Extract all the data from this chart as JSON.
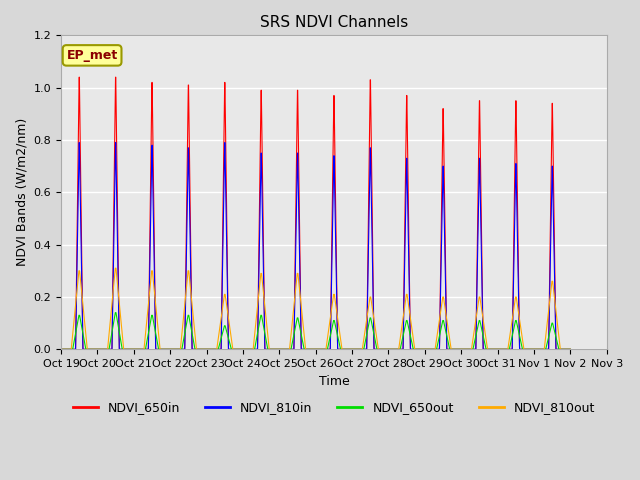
{
  "title": "SRS NDVI Channels",
  "xlabel": "Time",
  "ylabel": "NDVI Bands (W/m2/nm)",
  "annotation": "EP_met",
  "ylim": [
    0.0,
    1.2
  ],
  "tick_labels": [
    "Oct 19",
    "Oct 20",
    "Oct 21",
    "Oct 22",
    "Oct 23",
    "Oct 24",
    "Oct 25",
    "Oct 26",
    "Oct 27",
    "Oct 28",
    "Oct 29",
    "Oct 30",
    "Oct 31",
    "Nov 1",
    "Nov 2",
    "Nov 3"
  ],
  "series": {
    "NDVI_650in": {
      "color": "#ff0000",
      "label": "NDVI_650in"
    },
    "NDVI_810in": {
      "color": "#0000ff",
      "label": "NDVI_810in"
    },
    "NDVI_650out": {
      "color": "#00dd00",
      "label": "NDVI_650out"
    },
    "NDVI_810out": {
      "color": "#ffaa00",
      "label": "NDVI_810out"
    }
  },
  "peaks_650in": [
    1.04,
    1.04,
    1.02,
    1.01,
    1.02,
    0.99,
    0.99,
    0.97,
    1.03,
    0.97,
    0.92,
    0.95,
    0.95,
    0.94
  ],
  "peaks_810in": [
    0.79,
    0.79,
    0.78,
    0.77,
    0.79,
    0.75,
    0.75,
    0.74,
    0.77,
    0.73,
    0.7,
    0.73,
    0.71,
    0.7
  ],
  "peaks_650out": [
    0.13,
    0.14,
    0.13,
    0.13,
    0.09,
    0.13,
    0.12,
    0.11,
    0.12,
    0.11,
    0.11,
    0.11,
    0.11,
    0.1
  ],
  "peaks_810out": [
    0.3,
    0.31,
    0.3,
    0.3,
    0.21,
    0.29,
    0.29,
    0.21,
    0.2,
    0.21,
    0.2,
    0.2,
    0.2,
    0.26
  ],
  "n_cycles": 14,
  "figsize": [
    6.4,
    4.8
  ],
  "dpi": 100,
  "plot_bg_color": "#e8e8e8",
  "fig_bg_color": "#d8d8d8",
  "grid_color": "#ffffff",
  "title_fontsize": 11,
  "axis_label_fontsize": 9,
  "tick_fontsize": 8
}
